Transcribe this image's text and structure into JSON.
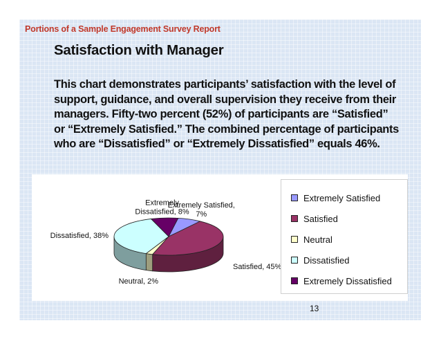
{
  "slide": {
    "header": "Portions of a Sample Engagement Survey Report",
    "title": "Satisfaction with Manager",
    "body": "This chart demonstrates participants’ satisfaction with the level of support, guidance, and overall supervision they receive from their managers.  Fifty-two percent (52%) of participants are “Satisfied” or “Extremely Satisfied.”  The combined percentage of participants who are “Dissatisfied” or “Extremely Dissatisfied” equals 46%.",
    "page_number": "13"
  },
  "chart_data": {
    "type": "pie",
    "title": "",
    "slices": [
      {
        "name": "Extremely Satisfied",
        "value": 7,
        "label_lines": [
          "Extremely Satisfied,",
          "7%"
        ],
        "color": "#9999ff"
      },
      {
        "name": "Satisfied",
        "value": 45,
        "label_lines": [
          "Satisfied, 45%"
        ],
        "color": "#993366"
      },
      {
        "name": "Neutral",
        "value": 2,
        "label_lines": [
          "Neutral, 2%"
        ],
        "color": "#ffffcc"
      },
      {
        "name": "Dissatisfied",
        "value": 38,
        "label_lines": [
          "Dissatisfied, 38%"
        ],
        "color": "#ccffff"
      },
      {
        "name": "Extremely Dissatisfied",
        "value": 8,
        "label_lines": [
          "Extremely",
          "Dissatisfied, 8%"
        ],
        "color": "#660066"
      }
    ],
    "legend_position": "right",
    "three_d": true
  }
}
